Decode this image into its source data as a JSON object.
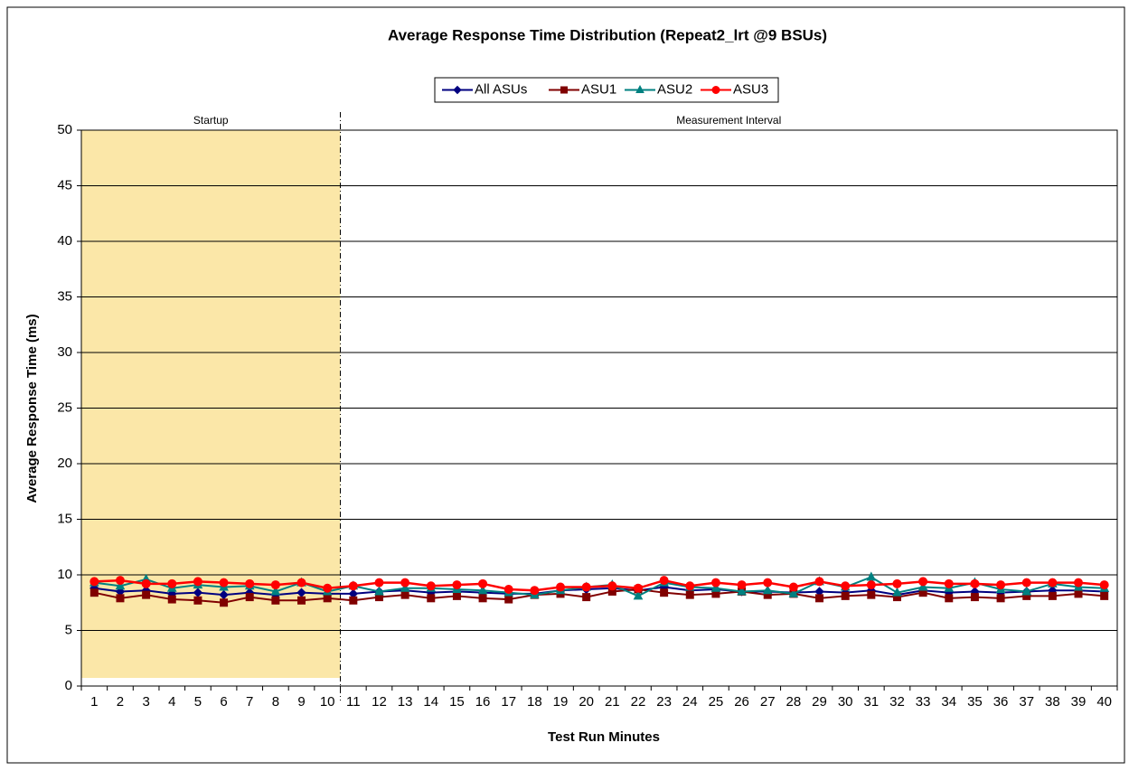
{
  "chart_data": {
    "type": "line",
    "title": "Average Response Time Distribution (Repeat2_lrt @9 BSUs)",
    "x_label": "Test Run Minutes",
    "y_label": "Average Response Time (ms)",
    "categories": [
      "1",
      "2",
      "3",
      "4",
      "5",
      "6",
      "7",
      "8",
      "9",
      "10",
      "11",
      "12",
      "13",
      "14",
      "15",
      "16",
      "17",
      "18",
      "19",
      "20",
      "21",
      "22",
      "23",
      "24",
      "25",
      "26",
      "27",
      "28",
      "29",
      "30",
      "31",
      "32",
      "33",
      "34",
      "35",
      "36",
      "37",
      "38",
      "39",
      "40"
    ],
    "series": [
      {
        "name": "All ASUs",
        "color": "#000080",
        "marker": "diamond",
        "values": [
          8.8,
          8.5,
          8.6,
          8.3,
          8.4,
          8.2,
          8.4,
          8.2,
          8.4,
          8.3,
          8.3,
          8.5,
          8.6,
          8.4,
          8.5,
          8.4,
          8.3,
          8.3,
          8.6,
          8.7,
          8.8,
          8.6,
          8.9,
          8.6,
          8.7,
          8.5,
          8.5,
          8.4,
          8.5,
          8.4,
          8.6,
          8.2,
          8.6,
          8.4,
          8.5,
          8.4,
          8.5,
          8.6,
          8.6,
          8.5
        ]
      },
      {
        "name": "ASU1",
        "color": "#800000",
        "marker": "square",
        "values": [
          8.4,
          7.9,
          8.2,
          7.8,
          7.7,
          7.5,
          8.0,
          7.7,
          7.7,
          7.9,
          7.7,
          8.0,
          8.2,
          7.9,
          8.1,
          7.9,
          7.8,
          8.2,
          8.3,
          8.0,
          8.5,
          8.7,
          8.4,
          8.2,
          8.3,
          8.5,
          8.2,
          8.3,
          7.9,
          8.1,
          8.2,
          8.0,
          8.4,
          7.9,
          8.0,
          7.9,
          8.1,
          8.1,
          8.3,
          8.1
        ]
      },
      {
        "name": "ASU2",
        "color": "#008080",
        "marker": "triangle",
        "values": [
          9.3,
          9.0,
          9.6,
          8.8,
          9.1,
          8.9,
          9.0,
          8.5,
          9.3,
          8.5,
          9.0,
          8.5,
          8.8,
          8.8,
          8.7,
          8.6,
          8.4,
          8.2,
          8.6,
          8.9,
          9.1,
          8.1,
          9.3,
          8.9,
          8.8,
          8.5,
          8.6,
          8.3,
          9.4,
          8.9,
          9.8,
          8.4,
          8.9,
          8.8,
          9.3,
          8.7,
          8.5,
          9.2,
          8.9,
          8.8
        ]
      },
      {
        "name": "ASU3",
        "color": "#ff0000",
        "marker": "circle",
        "values": [
          9.4,
          9.5,
          9.2,
          9.2,
          9.4,
          9.3,
          9.2,
          9.1,
          9.3,
          8.8,
          9.0,
          9.3,
          9.3,
          9.0,
          9.1,
          9.2,
          8.7,
          8.6,
          8.9,
          8.9,
          9.0,
          8.8,
          9.5,
          9.0,
          9.3,
          9.1,
          9.3,
          8.9,
          9.4,
          9.0,
          9.1,
          9.2,
          9.4,
          9.2,
          9.2,
          9.1,
          9.3,
          9.3,
          9.3,
          9.1
        ]
      }
    ],
    "regions": [
      {
        "label": "Startup",
        "start": "1",
        "end": "10",
        "color": "#fbe7a8"
      },
      {
        "label": "Measurement Interval",
        "start": "11",
        "end": "40"
      }
    ],
    "ylim": [
      0,
      50
    ],
    "yticks": [
      0,
      5,
      10,
      15,
      20,
      25,
      30,
      35,
      40,
      45,
      50
    ],
    "grid": true,
    "legend": "top"
  }
}
